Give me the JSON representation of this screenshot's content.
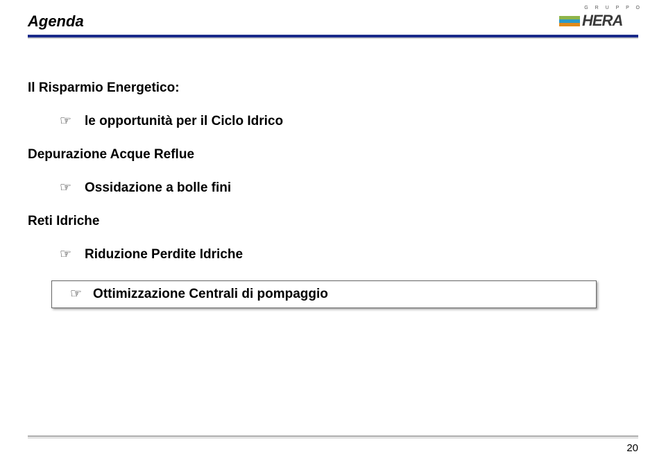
{
  "header": {
    "title": "Agenda",
    "rule_blue_color": "#1a2a8a",
    "rule_gray_color": "#d0d0d0"
  },
  "logo": {
    "top_label": "G R U P P O",
    "brand": "HERA",
    "bar_colors": [
      "#9a8fd8",
      "#7fd6e0",
      "#9ed89a"
    ],
    "stripe_colors": [
      "#8fb54a",
      "#2a9acb",
      "#e08a1a"
    ]
  },
  "content": {
    "main_heading": "Il Risparmio Energetico:",
    "bullet_glyph": "☞",
    "opportunity_line": "le opportunità per il Ciclo Idrico",
    "depurazione_heading": "Depurazione Acque Reflue",
    "ossidazione_line": "Ossidazione a bolle fini",
    "reti_heading": "Reti Idriche",
    "riduzione_line": "Riduzione Perdite Idriche",
    "boxed_line": "Ottimizzazione Centrali di pompaggio"
  },
  "footer": {
    "page_number": "20",
    "rule_color": "#bcbcbc"
  }
}
